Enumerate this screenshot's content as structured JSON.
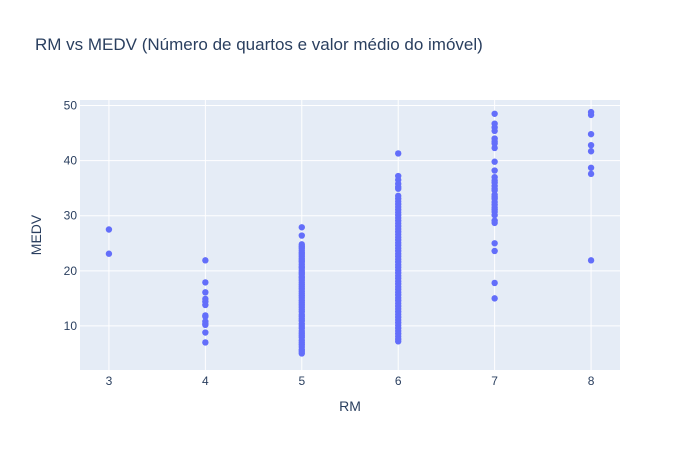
{
  "chart_data": {
    "type": "scatter",
    "title": "RM vs MEDV (Número de quartos e valor médio do imóvel)",
    "xlabel": "RM",
    "ylabel": "MEDV",
    "xlim": [
      2.7,
      8.3
    ],
    "ylim": [
      2,
      51
    ],
    "xticks": [
      3,
      4,
      5,
      6,
      7,
      8
    ],
    "yticks": [
      10,
      20,
      30,
      40,
      50
    ],
    "grid": true,
    "colors": {
      "plot_bg": "#e5ecf6",
      "marker": "#636efa",
      "grid": "#ffffff",
      "text": "#2a3f5f"
    },
    "series": [
      {
        "points": [
          [
            3,
            27.5
          ],
          [
            3,
            23.1
          ],
          [
            4,
            21.9
          ],
          [
            4,
            17.9
          ],
          [
            4,
            16.1
          ],
          [
            4,
            14.9
          ],
          [
            4,
            14.4
          ],
          [
            4,
            13.8
          ],
          [
            4,
            11.9
          ],
          [
            4,
            11.7
          ],
          [
            4,
            10.8
          ],
          [
            4,
            10.4
          ],
          [
            4,
            10.2
          ],
          [
            4,
            8.8
          ],
          [
            4,
            7.0
          ],
          [
            5,
            27.9
          ],
          [
            5,
            26.4
          ],
          [
            5,
            24.8
          ],
          [
            5,
            24.4
          ],
          [
            5,
            24.1
          ],
          [
            5,
            23.7
          ],
          [
            5,
            23.3
          ],
          [
            5,
            23.0
          ],
          [
            5,
            22.6
          ],
          [
            5,
            22.2
          ],
          [
            5,
            21.9
          ],
          [
            5,
            21.6
          ],
          [
            5,
            21.2
          ],
          [
            5,
            20.8
          ],
          [
            5,
            20.5
          ],
          [
            5,
            20.1
          ],
          [
            5,
            19.7
          ],
          [
            5,
            19.4
          ],
          [
            5,
            19.0
          ],
          [
            5,
            18.7
          ],
          [
            5,
            18.3
          ],
          [
            5,
            17.9
          ],
          [
            5,
            17.5
          ],
          [
            5,
            17.1
          ],
          [
            5,
            16.7
          ],
          [
            5,
            16.3
          ],
          [
            5,
            15.9
          ],
          [
            5,
            15.5
          ],
          [
            5,
            15.1
          ],
          [
            5,
            14.6
          ],
          [
            5,
            14.2
          ],
          [
            5,
            13.8
          ],
          [
            5,
            13.4
          ],
          [
            5,
            13.0
          ],
          [
            5,
            12.6
          ],
          [
            5,
            12.1
          ],
          [
            5,
            11.7
          ],
          [
            5,
            11.3
          ],
          [
            5,
            10.9
          ],
          [
            5,
            10.4
          ],
          [
            5,
            10.0
          ],
          [
            5,
            9.6
          ],
          [
            5,
            9.1
          ],
          [
            5,
            8.7
          ],
          [
            5,
            8.3
          ],
          [
            5,
            7.9
          ],
          [
            5,
            7.4
          ],
          [
            5,
            7.0
          ],
          [
            5,
            6.6
          ],
          [
            5,
            6.2
          ],
          [
            5,
            5.7
          ],
          [
            5,
            5.4
          ],
          [
            5,
            5.0
          ],
          [
            6,
            41.3
          ],
          [
            6,
            37.2
          ],
          [
            6,
            36.5
          ],
          [
            6,
            35.8
          ],
          [
            6,
            35.2
          ],
          [
            6,
            34.9
          ],
          [
            6,
            33.6
          ],
          [
            6,
            33.1
          ],
          [
            6,
            32.6
          ],
          [
            6,
            32.1
          ],
          [
            6,
            31.6
          ],
          [
            6,
            31.1
          ],
          [
            6,
            30.6
          ],
          [
            6,
            30.1
          ],
          [
            6,
            29.6
          ],
          [
            6,
            29.1
          ],
          [
            6,
            28.6
          ],
          [
            6,
            28.1
          ],
          [
            6,
            27.6
          ],
          [
            6,
            27.1
          ],
          [
            6,
            26.6
          ],
          [
            6,
            26.1
          ],
          [
            6,
            25.6
          ],
          [
            6,
            25.1
          ],
          [
            6,
            24.6
          ],
          [
            6,
            24.1
          ],
          [
            6,
            23.6
          ],
          [
            6,
            23.1
          ],
          [
            6,
            22.6
          ],
          [
            6,
            22.1
          ],
          [
            6,
            21.6
          ],
          [
            6,
            21.1
          ],
          [
            6,
            20.6
          ],
          [
            6,
            20.1
          ],
          [
            6,
            19.6
          ],
          [
            6,
            19.1
          ],
          [
            6,
            18.6
          ],
          [
            6,
            18.1
          ],
          [
            6,
            17.6
          ],
          [
            6,
            17.1
          ],
          [
            6,
            16.6
          ],
          [
            6,
            16.1
          ],
          [
            6,
            15.6
          ],
          [
            6,
            15.1
          ],
          [
            6,
            14.6
          ],
          [
            6,
            14.1
          ],
          [
            6,
            13.6
          ],
          [
            6,
            13.1
          ],
          [
            6,
            12.6
          ],
          [
            6,
            12.1
          ],
          [
            6,
            11.6
          ],
          [
            6,
            11.1
          ],
          [
            6,
            10.6
          ],
          [
            6,
            10.1
          ],
          [
            6,
            9.6
          ],
          [
            6,
            9.1
          ],
          [
            6,
            8.6
          ],
          [
            6,
            8.1
          ],
          [
            6,
            7.6
          ],
          [
            6,
            7.2
          ],
          [
            7,
            48.5
          ],
          [
            7,
            46.7
          ],
          [
            7,
            46.0
          ],
          [
            7,
            45.4
          ],
          [
            7,
            44.0
          ],
          [
            7,
            43.5
          ],
          [
            7,
            43.1
          ],
          [
            7,
            42.3
          ],
          [
            7,
            39.8
          ],
          [
            7,
            38.2
          ],
          [
            7,
            37.0
          ],
          [
            7,
            36.4
          ],
          [
            7,
            36.0
          ],
          [
            7,
            35.4
          ],
          [
            7,
            34.9
          ],
          [
            7,
            34.6
          ],
          [
            7,
            33.8
          ],
          [
            7,
            33.4
          ],
          [
            7,
            33.1
          ],
          [
            7,
            32.5
          ],
          [
            7,
            32.0
          ],
          [
            7,
            31.5
          ],
          [
            7,
            31.1
          ],
          [
            7,
            30.7
          ],
          [
            7,
            30.1
          ],
          [
            7,
            29.1
          ],
          [
            7,
            28.7
          ],
          [
            7,
            25.0
          ],
          [
            7,
            23.6
          ],
          [
            7,
            17.8
          ],
          [
            7,
            15.0
          ],
          [
            8,
            48.8
          ],
          [
            8,
            48.3
          ],
          [
            8,
            44.8
          ],
          [
            8,
            42.8
          ],
          [
            8,
            41.7
          ],
          [
            8,
            38.7
          ],
          [
            8,
            37.6
          ],
          [
            8,
            21.9
          ]
        ]
      }
    ]
  }
}
